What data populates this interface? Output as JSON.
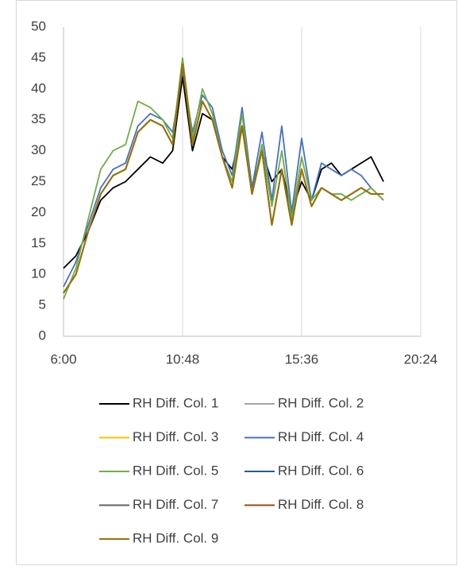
{
  "chart_data": {
    "type": "line",
    "x": [
      6,
      6.5,
      7,
      7.5,
      8,
      8.5,
      9,
      9.5,
      10,
      10.4,
      10.8,
      11.2,
      11.6,
      12,
      12.4,
      12.8,
      13.2,
      13.6,
      14,
      14.4,
      14.8,
      15.2,
      15.6,
      16,
      16.4,
      16.8,
      17.2,
      17.6,
      18,
      18.4,
      18.9
    ],
    "series": [
      {
        "name": "RH Diff. Col. 1",
        "color": "#000000",
        "values": [
          11,
          13,
          17,
          22,
          24,
          25,
          27,
          29,
          28,
          30,
          42,
          30,
          36,
          35,
          29,
          27,
          34,
          24,
          30,
          25,
          27,
          20,
          25,
          22,
          27,
          28,
          26,
          27,
          28,
          29,
          25
        ]
      },
      {
        "name": "RH Diff. Col. 2",
        "color": "#a5a5a5",
        "values": [
          7,
          10,
          17,
          23,
          26,
          27,
          33,
          35,
          34,
          31,
          44,
          31,
          38,
          35,
          29,
          24,
          34,
          23,
          30,
          18,
          27,
          18,
          27,
          21,
          24,
          23,
          22,
          23,
          24,
          23,
          23
        ]
      },
      {
        "name": "RH Diff. Col. 3",
        "color": "#ffc000",
        "values": [
          7,
          10,
          17,
          23,
          26,
          27,
          33,
          35,
          34,
          31,
          44,
          31,
          38,
          35,
          29,
          24,
          34,
          23,
          30,
          18,
          27,
          18,
          27,
          21,
          24,
          23,
          22,
          23,
          24,
          23,
          23
        ]
      },
      {
        "name": "RH Diff. Col. 4",
        "color": "#4472c4",
        "values": [
          8,
          12,
          18,
          24,
          27,
          28,
          34,
          36,
          35,
          33,
          43,
          33,
          39,
          37,
          30,
          26,
          37,
          24,
          33,
          22,
          34,
          20,
          32,
          22,
          28,
          27,
          26,
          27,
          26,
          24,
          22
        ]
      },
      {
        "name": "RH Diff. Col. 5",
        "color": "#70ad47",
        "values": [
          6,
          11,
          19,
          27,
          30,
          31,
          38,
          37,
          35,
          32,
          45,
          32,
          40,
          36,
          29,
          25,
          36,
          23,
          31,
          21,
          30,
          19,
          29,
          22,
          24,
          23,
          23,
          22,
          23,
          24,
          22
        ]
      },
      {
        "name": "RH Diff. Col. 6",
        "color": "#255e91",
        "values": [
          7,
          10,
          17,
          23,
          26,
          27,
          33,
          35,
          34,
          31,
          44,
          31,
          38,
          35,
          29,
          24,
          34,
          23,
          30,
          18,
          27,
          18,
          27,
          21,
          24,
          23,
          22,
          23,
          24,
          23,
          23
        ]
      },
      {
        "name": "RH Diff. Col. 7",
        "color": "#636363",
        "values": [
          7,
          10,
          17,
          23,
          26,
          27,
          33,
          35,
          34,
          31,
          44,
          31,
          38,
          35,
          29,
          24,
          34,
          23,
          30,
          18,
          27,
          18,
          27,
          21,
          24,
          23,
          22,
          23,
          24,
          23,
          23
        ]
      },
      {
        "name": "RH Diff. Col. 8",
        "color": "#9e480e",
        "values": [
          7,
          10,
          17,
          23,
          26,
          27,
          33,
          35,
          34,
          31,
          44,
          31,
          38,
          35,
          29,
          24,
          34,
          23,
          30,
          18,
          27,
          18,
          27,
          21,
          24,
          23,
          22,
          23,
          24,
          23,
          23
        ]
      },
      {
        "name": "RH Diff. Col. 9",
        "color": "#997300",
        "values": [
          7,
          10,
          17,
          23,
          26,
          27,
          33,
          35,
          34,
          31,
          44,
          31,
          38,
          35,
          29,
          24,
          34,
          23,
          30,
          18,
          27,
          18,
          27,
          21,
          24,
          23,
          22,
          23,
          24,
          23,
          23
        ]
      }
    ],
    "xlim": [
      6,
      20.4
    ],
    "xticks": [
      {
        "value": 6,
        "label": "6:00"
      },
      {
        "value": 10.8,
        "label": "10:48"
      },
      {
        "value": 15.6,
        "label": "15:36"
      },
      {
        "value": 20.4,
        "label": "20:24"
      }
    ],
    "ylim": [
      0,
      50
    ],
    "yticks": [
      0,
      5,
      10,
      15,
      20,
      25,
      30,
      35,
      40,
      45,
      50
    ],
    "grid": true
  }
}
